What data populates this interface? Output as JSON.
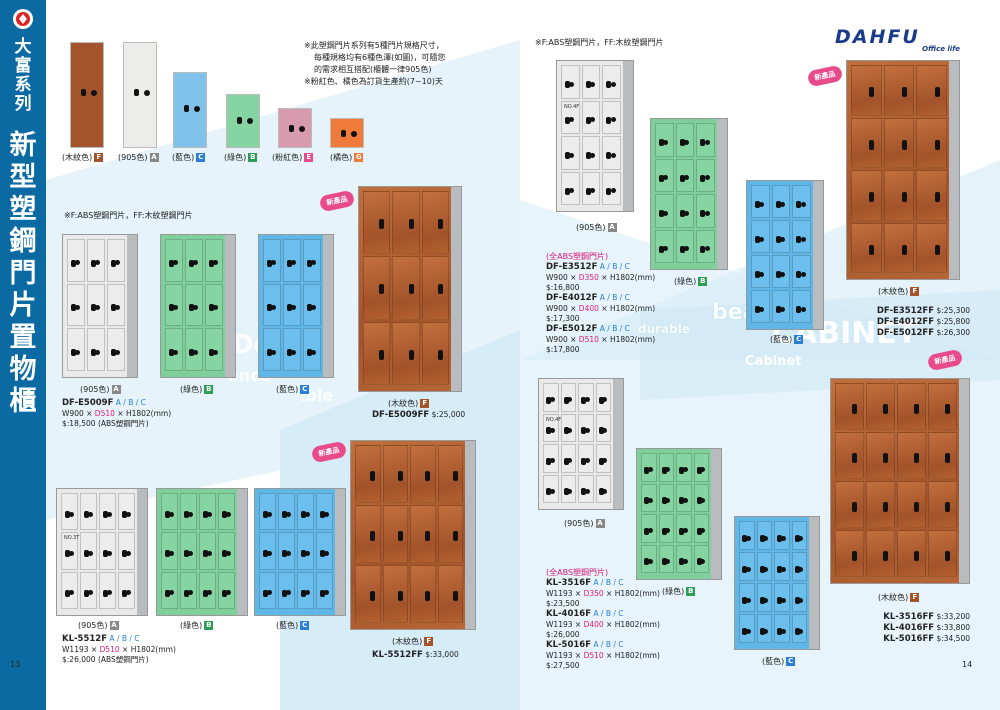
{
  "brand": {
    "vertical_series": "大富系列",
    "vertical_title": "新型塑鋼門片置物櫃",
    "logo_name": "DAHFU",
    "logo_sub": "Office life"
  },
  "pages": {
    "left": "13",
    "right": "14"
  },
  "colors": {
    "sidebar": "#0b6aa2",
    "A": "#e9e9ea",
    "B": "#7fcf9b",
    "C": "#5fb7e8",
    "E": "#e2a0b8",
    "F": "#a4542a",
    "G": "#f07a3a",
    "accent_pink": "#e01d73",
    "accent_blue": "#2a7fd4"
  },
  "swatches": [
    {
      "label": "(木紋色)",
      "tag": "F",
      "color": "#a4542a"
    },
    {
      "label": "(905色)",
      "tag": "A",
      "color": "#ececea"
    },
    {
      "label": "(藍色)",
      "tag": "C",
      "color": "#7fc3ea"
    },
    {
      "label": "(綠色)",
      "tag": "B",
      "color": "#86d4a1"
    },
    {
      "label": "(粉紅色)",
      "tag": "E",
      "color": "#d89aae"
    },
    {
      "label": "(橘色)",
      "tag": "G",
      "color": "#f07a3a"
    }
  ],
  "notes": {
    "spec_note": [
      "※此塑鋼門片系列有5種門片規格尺寸，",
      "每種規格均有6種色澤(如圖)，可隨您",
      "的需求相互搭配(櫃體一律905色)",
      "※粉紅色、橘色為訂貨生產約(7~10)天"
    ],
    "door_legend": "※F:ABS塑鋼門片，FF:木紋塑鋼門片"
  },
  "watermarks": [
    "beauty",
    "durable",
    "CABINET",
    "Cabinet",
    "De",
    "ance",
    "ible"
  ],
  "new_badge": "新產品",
  "color_labels": {
    "A": "(905色)",
    "B": "(綠色)",
    "C": "(藍色)",
    "F": "(木紋色)"
  },
  "products": {
    "df_e5009f": {
      "model": "DF-E5009F",
      "variants": "A / B / C",
      "dim_prefix": "W900 × ",
      "dim_depth": "D510",
      "dim_suffix": " × H1802(mm)",
      "price": "$:18,500",
      "price_note": "(ABS塑鋼門片)"
    },
    "df_e5009ff": {
      "model": "DF-E5009FF",
      "price": "$:25,000"
    },
    "kl_5512f": {
      "model": "KL-5512F",
      "variants": "A / B / C",
      "dim_prefix": "W1193 × ",
      "dim_depth": "D510",
      "dim_suffix": " × H1802(mm)",
      "price": "$:26,000",
      "price_note": "(ABS塑鋼門片)"
    },
    "kl_5512ff": {
      "model": "KL-5512FF",
      "price": "$:33,000"
    },
    "df_e_group": {
      "header": "(全ABS塑鋼門片)",
      "items": [
        {
          "model": "DF-E3512F",
          "variants": "A / B / C",
          "dim_prefix": "W900 × ",
          "dim_depth": "D350",
          "dim_suffix": " × H1802(mm)",
          "price": "$:16,800"
        },
        {
          "model": "DF-E4012F",
          "variants": "A / B / C",
          "dim_prefix": "W900 × ",
          "dim_depth": "D400",
          "dim_suffix": " × H1802(mm)",
          "price": "$:17,300"
        },
        {
          "model": "DF-E5012F",
          "variants": "A / B / C",
          "dim_prefix": "W900 × ",
          "dim_depth": "D510",
          "dim_suffix": " × H1802(mm)",
          "price": "$:17,800"
        }
      ]
    },
    "df_e_ff": [
      {
        "model": "DF-E3512FF",
        "price": "$:25,300"
      },
      {
        "model": "DF-E4012FF",
        "price": "$:25,800"
      },
      {
        "model": "DF-E5012FF",
        "price": "$:26,300"
      }
    ],
    "kl_group": {
      "header": "(全ABS塑鋼門片)",
      "items": [
        {
          "model": "KL-3516F",
          "variants": "A / B / C",
          "dim_prefix": "W1193 × ",
          "dim_depth": "D350",
          "dim_suffix": " × H1802(mm)",
          "price": "$:23,500"
        },
        {
          "model": "KL-4016F",
          "variants": "A / B / C",
          "dim_prefix": "W1193 × ",
          "dim_depth": "D400",
          "dim_suffix": " × H1802(mm)",
          "price": "$:26,000"
        },
        {
          "model": "KL-5016F",
          "variants": "A / B / C",
          "dim_prefix": "W1193 × ",
          "dim_depth": "D510",
          "dim_suffix": " × H1802(mm)",
          "price": "$:27,500"
        }
      ]
    },
    "kl_ff": [
      {
        "model": "KL-3516FF",
        "price": "$:33,200"
      },
      {
        "model": "KL-4016FF",
        "price": "$:33,800"
      },
      {
        "model": "KL-5016FF",
        "price": "$:34,500"
      }
    ]
  },
  "cabinet_labels": {
    "no3t": "NO.3T",
    "no4f": "NO.4F"
  }
}
